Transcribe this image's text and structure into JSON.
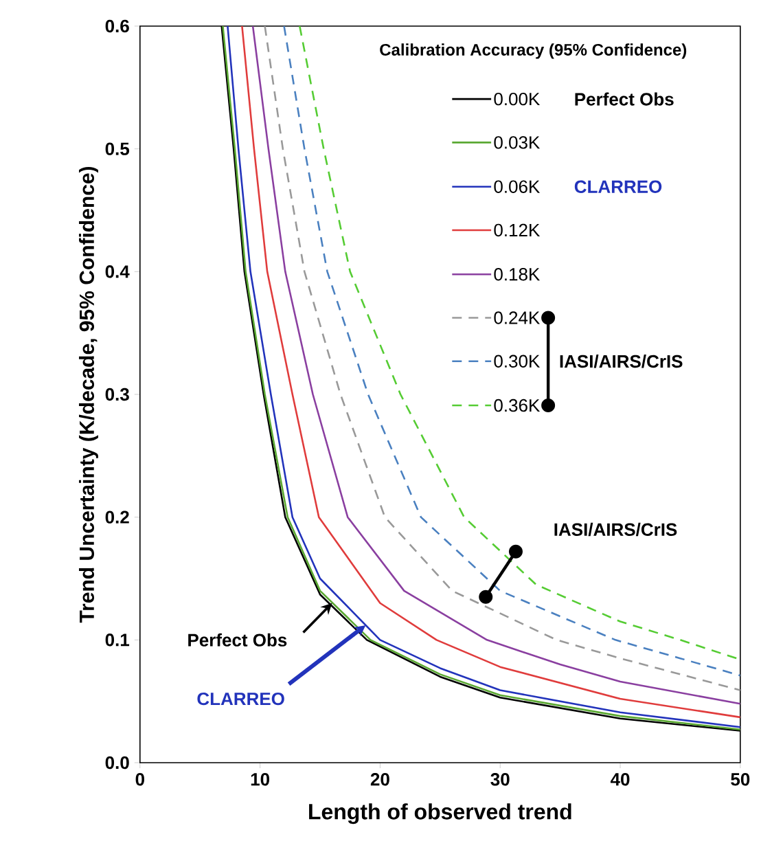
{
  "chart_data": {
    "type": "line",
    "xlabel": "Length of observed trend",
    "ylabel": "Trend Uncertainty (K/decade, 95% Confidence)",
    "legend_title": "Calibration Accuracy (95% Confidence)",
    "legend": "top right",
    "grid": false,
    "xlim": [
      0,
      50
    ],
    "xticks": [
      0,
      10,
      20,
      30,
      40,
      50
    ],
    "ylim": [
      0,
      0.6
    ],
    "yticks": [
      {
        "value": 0,
        "label": "0.0"
      },
      0.1,
      0.2,
      0.3,
      0.4,
      0.5,
      0.6
    ],
    "series": [
      {
        "name": "0.00K",
        "color": "#000000",
        "line_style": "solid",
        "x": [
          6.8,
          7.8,
          8.7,
          10.3,
          12.1,
          15,
          18.9,
          25,
          30,
          40,
          50
        ],
        "values": [
          0.6,
          0.5,
          0.4,
          0.3,
          0.2,
          0.137,
          0.1,
          0.07,
          0.053,
          0.036,
          0.026
        ]
      },
      {
        "name": "0.03K",
        "color": "#5aa832",
        "line_style": "solid",
        "x": [
          6.9,
          7.9,
          8.8,
          10.4,
          12.3,
          15,
          19.2,
          25,
          30,
          40,
          50
        ],
        "values": [
          0.6,
          0.5,
          0.4,
          0.3,
          0.2,
          0.14,
          0.1,
          0.072,
          0.055,
          0.038,
          0.027
        ]
      },
      {
        "name": "0.06K",
        "color": "#2233bb",
        "line_style": "solid",
        "x": [
          7.3,
          8.2,
          9.2,
          10.9,
          12.7,
          15,
          20,
          25,
          30,
          40,
          50
        ],
        "values": [
          0.6,
          0.5,
          0.4,
          0.3,
          0.2,
          0.15,
          0.1,
          0.077,
          0.059,
          0.041,
          0.029
        ]
      },
      {
        "name": "0.12K",
        "color": "#e03c3c",
        "line_style": "solid",
        "x": [
          8.5,
          9.5,
          10.6,
          12.7,
          14.9,
          20,
          24.7,
          30,
          40,
          50
        ],
        "values": [
          0.6,
          0.5,
          0.4,
          0.3,
          0.2,
          0.13,
          0.1,
          0.078,
          0.052,
          0.037
        ]
      },
      {
        "name": "0.18K",
        "color": "#8a3fa0",
        "line_style": "solid",
        "x": [
          9.4,
          10.7,
          12.1,
          14.4,
          17.3,
          22,
          28.9,
          35,
          40,
          50
        ],
        "values": [
          0.6,
          0.5,
          0.4,
          0.3,
          0.2,
          0.14,
          0.1,
          0.08,
          0.066,
          0.048
        ]
      },
      {
        "name": "0.24K",
        "color": "#999999",
        "line_style": "dashed",
        "x": [
          10.4,
          11.9,
          13.7,
          16.7,
          20.4,
          26,
          34.7,
          40,
          50
        ],
        "values": [
          0.6,
          0.5,
          0.4,
          0.3,
          0.2,
          0.14,
          0.1,
          0.085,
          0.059
        ]
      },
      {
        "name": "0.30K",
        "color": "#4a80c0",
        "line_style": "dashed",
        "x": [
          12,
          13.7,
          15.6,
          19,
          23.4,
          30,
          39.6,
          45,
          50
        ],
        "values": [
          0.6,
          0.5,
          0.4,
          0.3,
          0.2,
          0.14,
          0.1,
          0.085,
          0.071
        ]
      },
      {
        "name": "0.36K",
        "color": "#55cc33",
        "line_style": "dashed",
        "x": [
          13.3,
          15.3,
          17.5,
          21.7,
          27,
          33,
          40,
          45,
          50
        ],
        "values": [
          0.6,
          0.5,
          0.4,
          0.3,
          0.2,
          0.145,
          0.115,
          0.1,
          0.084
        ]
      }
    ],
    "annotations": [
      "Perfect Obs",
      "CLARREO",
      "IASI/AIRS/CrIS",
      {
        "text": "Perfect Obs",
        "x": 16,
        "y": 0.13
      },
      {
        "text": "CLARREO",
        "x": 18.8,
        "y": 0.112
      },
      {
        "text": "IASI/AIRS/CrIS",
        "x": 31.3,
        "y": 0.172
      }
    ]
  }
}
